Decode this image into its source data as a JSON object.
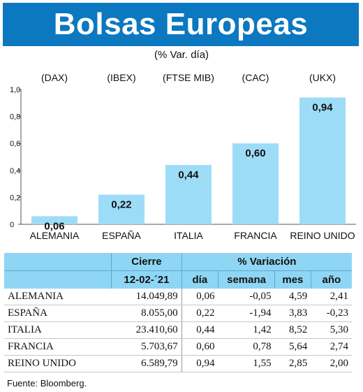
{
  "title": "Bolsas Europeas",
  "subtitle": "(% Var. día)",
  "chart_data": {
    "type": "bar",
    "categories": [
      "ALEMANIA",
      "ESPAÑA",
      "ITALIA",
      "FRANCIA",
      "REINO UNIDO"
    ],
    "indices": [
      "(DAX)",
      "(IBEX)",
      "(FTSE MIB)",
      "(CAC)",
      "(UKX)"
    ],
    "values": [
      0.06,
      0.22,
      0.44,
      0.6,
      0.94
    ],
    "value_labels": [
      "0,06",
      "0,22",
      "0,44",
      "0,60",
      "0,94"
    ],
    "ylim": [
      0,
      1.0
    ],
    "yticks": [
      0,
      0.2,
      0.4,
      0.6,
      0.8,
      1.0
    ],
    "ytick_labels": [
      "0",
      "0,2",
      "0,4",
      "0,6",
      "0,8",
      "1,0"
    ],
    "bar_color": "#9ddcf7",
    "grid": false
  },
  "table": {
    "header1": {
      "cierre": "Cierre",
      "variacion": "% Variación"
    },
    "header2": {
      "fecha": "12-02-´21",
      "dia": "día",
      "semana": "semana",
      "mes": "mes",
      "anio": "año"
    },
    "rows": [
      {
        "pais": "ALEMANIA",
        "cierre": "14.049,89",
        "dia": "0,06",
        "semana": "-0,05",
        "mes": "4,59",
        "anio": "2,41"
      },
      {
        "pais": "ESPAÑA",
        "cierre": "8.055,00",
        "dia": "0,22",
        "semana": "-1,94",
        "mes": "3,83",
        "anio": "-0,23"
      },
      {
        "pais": "ITALIA",
        "cierre": "23.410,60",
        "dia": "0,44",
        "semana": "1,42",
        "mes": "8,52",
        "anio": "5,30"
      },
      {
        "pais": "FRANCIA",
        "cierre": "5.703,67",
        "dia": "0,60",
        "semana": "0,78",
        "mes": "5,64",
        "anio": "2,74"
      },
      {
        "pais": "REINO UNIDO",
        "cierre": "6.589,79",
        "dia": "0,94",
        "semana": "1,55",
        "mes": "2,85",
        "anio": "2,00"
      }
    ]
  },
  "source": "Fuente: Bloomberg.",
  "colors": {
    "title_bg": "#0b78c0",
    "table_header_bg": "#8fd6f4"
  }
}
